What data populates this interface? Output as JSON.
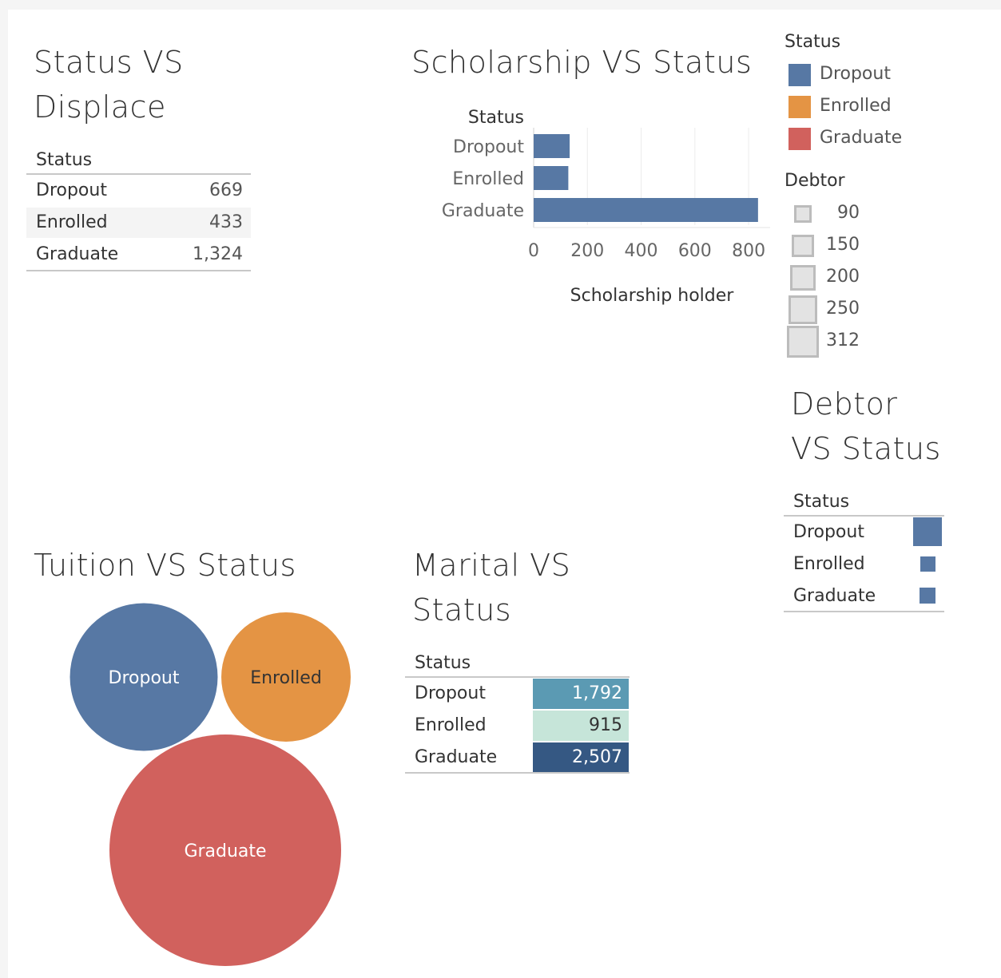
{
  "displaced": {
    "title_line1": "Status VS",
    "title_line2": "Displace",
    "header": "Status",
    "rows": [
      {
        "label": "Dropout",
        "value": "669"
      },
      {
        "label": "Enrolled",
        "value": "433"
      },
      {
        "label": "Graduate",
        "value": "1,324"
      }
    ]
  },
  "scholarship": {
    "title": "Scholarship VS Status",
    "row_header": "Status"
  },
  "legend": {
    "status_title": "Status",
    "status_items": [
      {
        "label": "Dropout",
        "color": "#5778a4"
      },
      {
        "label": "Enrolled",
        "color": "#e49444"
      },
      {
        "label": "Graduate",
        "color": "#d1615d"
      }
    ],
    "debtor_title": "Debtor",
    "debtor_sizes": [
      "90",
      "150",
      "200",
      "250",
      "312"
    ]
  },
  "debtor": {
    "title_line1": "Debtor",
    "title_line2": "VS Status",
    "header": "Status",
    "rows": [
      {
        "label": "Dropout",
        "value": 312
      },
      {
        "label": "Enrolled",
        "value": 90
      },
      {
        "label": "Graduate",
        "value": 101
      }
    ]
  },
  "tuition": {
    "title": "Tuition VS Status"
  },
  "marital": {
    "title_line1": "Marital VS",
    "title_line2": "Status",
    "header": "Status",
    "rows": [
      {
        "label": "Dropout",
        "value": "1,792",
        "color": "#5b9ab3",
        "text_color": "#ffffff"
      },
      {
        "label": "Enrolled",
        "value": "915",
        "color": "#c6e5d9",
        "text_color": "#333333"
      },
      {
        "label": "Graduate",
        "value": "2,507",
        "color": "#355883",
        "text_color": "#ffffff"
      }
    ]
  },
  "chart_data": [
    {
      "type": "bar",
      "orientation": "horizontal",
      "title": "Scholarship VS Status",
      "xlabel": "Scholarship holder",
      "ylabel": "Status",
      "categories": [
        "Dropout",
        "Enrolled",
        "Graduate"
      ],
      "values": [
        134,
        129,
        835
      ],
      "xlim": [
        0,
        880
      ],
      "xticks": [
        "0",
        "200",
        "400",
        "600",
        "800"
      ],
      "color": "#5778a4"
    },
    {
      "type": "bubble",
      "title": "Tuition VS Status",
      "categories": [
        "Dropout",
        "Enrolled",
        "Graduate"
      ],
      "values": [
        1200,
        920,
        2950
      ],
      "colors": [
        "#5778a4",
        "#e49444",
        "#d1615d"
      ],
      "label_colors": [
        "#ffffff",
        "#333333",
        "#ffffff"
      ]
    }
  ]
}
